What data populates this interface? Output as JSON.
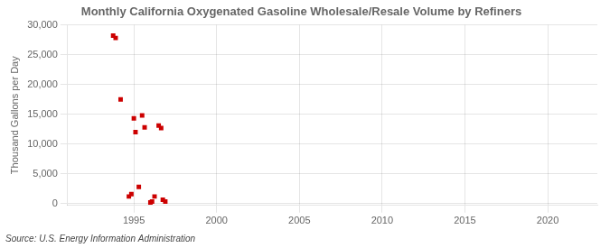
{
  "chart_data": {
    "type": "scatter",
    "title": "Monthly California Oxygenated Gasoline Wholesale/Resale Volume by Refiners",
    "ylabel": "Thousand Gallons per Day",
    "source": "Source: U.S. Energy Information Administration",
    "color": "#cc0000",
    "marker": "square",
    "grid": true,
    "xlim": [
      1991,
      2023
    ],
    "ylim": [
      -300,
      30000
    ],
    "xticks": [
      1995,
      2000,
      2005,
      2010,
      2015,
      2020
    ],
    "yticks": [
      0,
      {
        "value": 5000,
        "label": "5,000"
      },
      {
        "value": 10000,
        "label": "10,000"
      },
      {
        "value": 15000,
        "label": "15,000"
      },
      {
        "value": 20000,
        "label": "20,000"
      },
      {
        "value": 25000,
        "label": "25,000"
      },
      {
        "value": 30000,
        "label": "30,000"
      }
    ],
    "x": [
      1993.75,
      1993.9,
      1994.2,
      1994.7,
      1994.85,
      1995.0,
      1995.1,
      1995.3,
      1995.5,
      1995.65,
      1996.0,
      1996.1,
      1996.25,
      1996.5,
      1996.65,
      1996.75,
      1996.9
    ],
    "values": [
      28200,
      27800,
      17500,
      1200,
      1600,
      14300,
      12000,
      2800,
      14800,
      12800,
      200,
      350,
      1200,
      13100,
      12700,
      650,
      350
    ]
  }
}
